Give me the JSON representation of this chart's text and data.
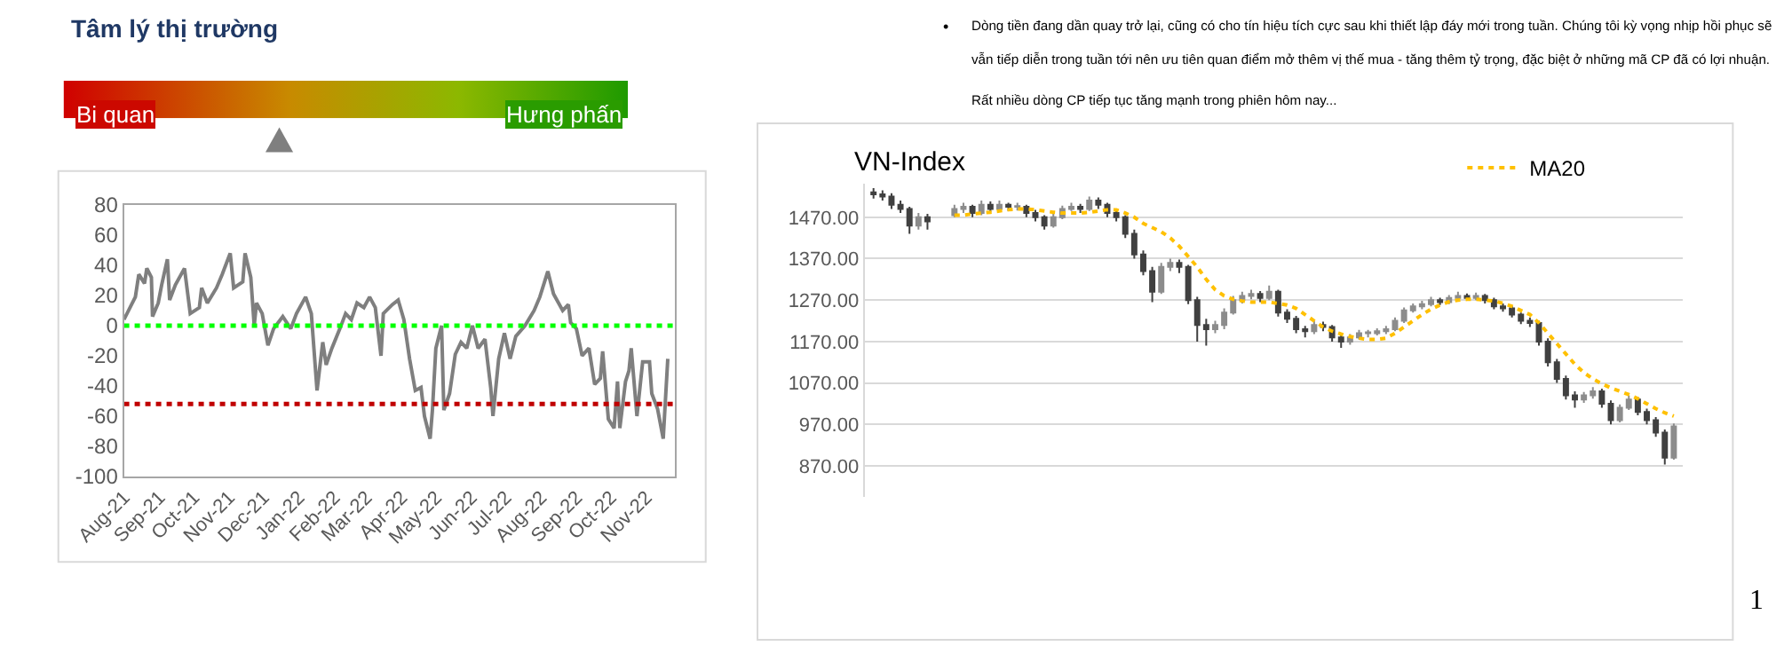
{
  "chart_data": [
    {
      "type": "line",
      "title": "Tâm lý thị trường",
      "annotations": [
        "Bi quan",
        "Hưng phấn"
      ],
      "color": "#7f7f7f",
      "marker": "none",
      "line_style": "solid",
      "grid": false,
      "x": [
        "2021-08-01",
        "2021-08-11",
        "2021-08-14",
        "2021-08-19",
        "2021-08-21",
        "2021-08-25",
        "2021-08-26",
        "2021-08-31",
        "2021-09-03",
        "2021-09-08",
        "2021-09-10",
        "2021-09-15",
        "2021-09-23",
        "2021-09-28",
        "2021-10-06",
        "2021-10-08",
        "2021-10-13",
        "2021-10-21",
        "2021-10-26",
        "2021-11-02",
        "2021-11-05",
        "2021-11-13",
        "2021-11-15",
        "2021-11-20",
        "2021-11-23",
        "2021-11-25",
        "2021-11-30",
        "2021-12-05",
        "2021-12-10",
        "2021-12-18",
        "2021-12-25",
        "2021-12-30",
        "2022-01-07",
        "2022-01-12",
        "2022-01-17",
        "2022-01-22",
        "2022-01-25",
        "2022-01-30",
        "2022-02-06",
        "2022-02-11",
        "2022-02-16",
        "2022-02-21",
        "2022-02-27",
        "2022-03-04",
        "2022-03-09",
        "2022-03-14",
        "2022-03-16",
        "2022-03-24",
        "2022-03-29",
        "2022-04-03",
        "2022-04-08",
        "2022-04-13",
        "2022-04-18",
        "2022-04-21",
        "2022-04-26",
        "2022-04-28",
        "2022-05-01",
        "2022-05-06",
        "2022-05-08",
        "2022-05-13",
        "2022-05-18",
        "2022-05-23",
        "2022-05-28",
        "2022-06-02",
        "2022-06-07",
        "2022-06-13",
        "2022-06-18",
        "2022-06-20",
        "2022-06-25",
        "2022-06-30",
        "2022-07-05",
        "2022-07-10",
        "2022-07-18",
        "2022-07-26",
        "2022-07-31",
        "2022-08-07",
        "2022-08-12",
        "2022-08-20",
        "2022-08-25",
        "2022-08-27",
        "2022-09-01",
        "2022-09-06",
        "2022-09-12",
        "2022-09-17",
        "2022-09-22",
        "2022-09-24",
        "2022-09-29",
        "2022-10-04",
        "2022-10-07",
        "2022-10-09",
        "2022-10-14",
        "2022-10-17",
        "2022-10-19",
        "2022-10-24",
        "2022-10-29",
        "2022-11-04",
        "2022-11-06",
        "2022-11-11",
        "2022-11-16",
        "2022-11-20"
      ],
      "values": [
        4,
        19,
        34,
        28,
        38,
        32,
        6,
        15,
        27,
        44,
        17,
        27,
        38,
        8,
        12,
        25,
        15,
        25,
        34,
        48,
        25,
        29,
        48,
        32,
        0,
        15,
        8,
        -13,
        -2,
        6,
        -2,
        8,
        19,
        8,
        -43,
        -11,
        -26,
        -15,
        -2,
        8,
        4,
        15,
        12,
        19,
        12,
        -20,
        8,
        14,
        17,
        4,
        -22,
        -43,
        -41,
        -60,
        -75,
        -56,
        -15,
        0,
        -56,
        -45,
        -19,
        -11,
        -15,
        0,
        -15,
        -9,
        -41,
        -60,
        -22,
        -5,
        -22,
        -7,
        0,
        10,
        19,
        36,
        21,
        10,
        14,
        2,
        -2,
        -20,
        -15,
        -39,
        -35,
        -17,
        -62,
        -68,
        -37,
        -68,
        -37,
        -30,
        -15,
        -60,
        -24,
        -24,
        -45,
        -55,
        -75,
        -22
      ],
      "xlim": [
        "2021-08-01",
        "2022-11-26"
      ],
      "xticks": [
        {
          "value": "2021-08-01",
          "label": "Aug-21"
        },
        {
          "value": "2021-09-01",
          "label": "Sep-21"
        },
        {
          "value": "2021-10-01",
          "label": "Oct-21"
        },
        {
          "value": "2021-11-01",
          "label": "Nov-21"
        },
        {
          "value": "2021-12-01",
          "label": "Dec-21"
        },
        {
          "value": "2022-01-01",
          "label": "Jan-22"
        },
        {
          "value": "2022-02-01",
          "label": "Feb-22"
        },
        {
          "value": "2022-03-01",
          "label": "Mar-22"
        },
        {
          "value": "2022-04-01",
          "label": "Apr-22"
        },
        {
          "value": "2022-05-01",
          "label": "May-22"
        },
        {
          "value": "2022-06-01",
          "label": "Jun-22"
        },
        {
          "value": "2022-07-01",
          "label": "Jul-22"
        },
        {
          "value": "2022-08-01",
          "label": "Aug-22"
        },
        {
          "value": "2022-09-01",
          "label": "Sep-22"
        },
        {
          "value": "2022-10-01",
          "label": "Oct-22"
        },
        {
          "value": "2022-11-01",
          "label": "Nov-22"
        }
      ],
      "ylim": [
        -100,
        80
      ],
      "yticks": [
        -100,
        -80,
        -60,
        -40,
        -20,
        0,
        20,
        40,
        60,
        80
      ],
      "ref_lines": [
        {
          "axis": "y",
          "value": 0,
          "color": "#00ff00",
          "line_style": "dotted"
        },
        {
          "axis": "y",
          "value": -52,
          "color": "#c00000",
          "line_style": "dotted"
        }
      ]
    },
    {
      "type": "candlestick",
      "title": "VN-Index",
      "grid": "y",
      "legend": "top right",
      "tick_labels": "y",
      "colors": [
        "#404040",
        "#404040",
        "#404040",
        "#404040",
        "#404040",
        "#8c8c8c",
        "#404040",
        null,
        null,
        "#8c8c8c",
        "#8c8c8c",
        "#404040",
        "#8c8c8c",
        "#404040",
        "#8c8c8c",
        "#404040",
        "#8c8c8c",
        "#404040",
        "#404040",
        "#404040",
        "#8c8c8c",
        "#8c8c8c",
        "#8c8c8c",
        "#404040",
        "#8c8c8c",
        "#404040",
        "#404040",
        "#404040",
        "#404040",
        "#404040",
        "#404040",
        "#404040",
        "#8c8c8c",
        "#8c8c8c",
        "#404040",
        "#404040",
        "#404040",
        "#404040",
        "#8c8c8c",
        "#8c8c8c",
        "#8c8c8c",
        "#8c8c8c",
        "#8c8c8c",
        "#404040",
        "#8c8c8c",
        "#404040",
        "#404040",
        "#404040",
        "#404040",
        "#8c8c8c",
        "#404040",
        "#404040",
        "#404040",
        "#8c8c8c",
        "#8c8c8c",
        "#8c8c8c",
        "#8c8c8c",
        "#8c8c8c",
        "#8c8c8c",
        "#8c8c8c",
        "#8c8c8c",
        "#8c8c8c",
        "#8c8c8c",
        "#404040",
        "#8c8c8c",
        "#8c8c8c",
        "#404040",
        "#8c8c8c",
        "#404040",
        "#404040",
        "#404040",
        "#404040",
        "#404040",
        "#404040",
        "#404040",
        "#404040",
        "#404040",
        "#404040",
        "#404040",
        "#8c8c8c",
        "#8c8c8c",
        "#404040",
        "#404040",
        "#8c8c8c",
        "#8c8c8c",
        "#404040",
        "#404040",
        "#404040",
        "#404040",
        "#8c8c8c"
      ],
      "categories": [
        null,
        null,
        null,
        null,
        null,
        null,
        null,
        null,
        null,
        null,
        null,
        null,
        null,
        null,
        null,
        null,
        null,
        null,
        null,
        null,
        null,
        null,
        null,
        null,
        null,
        null,
        null,
        null,
        null,
        null,
        null,
        null,
        null,
        null,
        null,
        null,
        null,
        null,
        null,
        null,
        null,
        null,
        null,
        null,
        null,
        null,
        null,
        null,
        null,
        null,
        null,
        null,
        null,
        null,
        null,
        null,
        null,
        null,
        null,
        null,
        null,
        null,
        null,
        null,
        null,
        null,
        null,
        null,
        null,
        null,
        null,
        null,
        null,
        null,
        null,
        null,
        null,
        null,
        null,
        null,
        null,
        null,
        null,
        null,
        null,
        null,
        null,
        null,
        null,
        null
      ],
      "ohlc": [
        [
          1530,
          1540,
          1515,
          1525
        ],
        [
          1525,
          1535,
          1510,
          1520
        ],
        [
          1520,
          1528,
          1490,
          1500
        ],
        [
          1500,
          1510,
          1480,
          1490
        ],
        [
          1490,
          1495,
          1430,
          1450
        ],
        [
          1450,
          1480,
          1440,
          1470
        ],
        [
          1470,
          1478,
          1440,
          1460
        ],
        null,
        null,
        [
          1475,
          1500,
          1470,
          1490
        ],
        [
          1490,
          1505,
          1480,
          1495
        ],
        [
          1495,
          1500,
          1470,
          1480
        ],
        [
          1480,
          1510,
          1475,
          1500
        ],
        [
          1500,
          1508,
          1482,
          1490
        ],
        [
          1490,
          1510,
          1485,
          1500
        ],
        [
          1500,
          1505,
          1485,
          1495
        ],
        [
          1495,
          1505,
          1486,
          1497
        ],
        [
          1495,
          1500,
          1470,
          1480
        ],
        [
          1480,
          1488,
          1460,
          1470
        ],
        [
          1470,
          1475,
          1440,
          1450
        ],
        [
          1450,
          1480,
          1445,
          1470
        ],
        [
          1470,
          1498,
          1465,
          1490
        ],
        [
          1490,
          1505,
          1485,
          1495
        ],
        [
          1495,
          1502,
          1480,
          1490
        ],
        [
          1490,
          1520,
          1485,
          1510
        ],
        [
          1510,
          1518,
          1490,
          1500
        ],
        [
          1500,
          1505,
          1470,
          1480
        ],
        [
          1480,
          1490,
          1460,
          1470
        ],
        [
          1470,
          1475,
          1420,
          1430
        ],
        [
          1430,
          1440,
          1370,
          1380
        ],
        [
          1380,
          1390,
          1330,
          1340
        ],
        [
          1340,
          1350,
          1265,
          1290
        ],
        [
          1290,
          1360,
          1285,
          1350
        ],
        [
          1350,
          1370,
          1340,
          1360
        ],
        [
          1360,
          1368,
          1335,
          1350
        ],
        [
          1350,
          1355,
          1260,
          1270
        ],
        [
          1270,
          1278,
          1170,
          1210
        ],
        [
          1210,
          1225,
          1160,
          1200
        ],
        [
          1200,
          1220,
          1190,
          1210
        ],
        [
          1210,
          1250,
          1200,
          1240
        ],
        [
          1240,
          1280,
          1235,
          1270
        ],
        [
          1270,
          1290,
          1262,
          1280
        ],
        [
          1280,
          1295,
          1272,
          1285
        ],
        [
          1285,
          1292,
          1265,
          1275
        ],
        [
          1275,
          1305,
          1270,
          1290
        ],
        [
          1290,
          1295,
          1230,
          1240
        ],
        [
          1240,
          1248,
          1215,
          1225
        ],
        [
          1225,
          1232,
          1190,
          1200
        ],
        [
          1200,
          1208,
          1180,
          1195
        ],
        [
          1195,
          1220,
          1188,
          1210
        ],
        [
          1210,
          1218,
          1195,
          1205
        ],
        [
          1205,
          1210,
          1170,
          1180
        ],
        [
          1180,
          1188,
          1155,
          1170
        ],
        [
          1170,
          1188,
          1162,
          1180
        ],
        [
          1180,
          1198,
          1175,
          1190
        ],
        [
          1190,
          1198,
          1180,
          1192
        ],
        [
          1190,
          1202,
          1185,
          1195
        ],
        [
          1195,
          1208,
          1188,
          1200
        ],
        [
          1200,
          1228,
          1195,
          1220
        ],
        [
          1220,
          1252,
          1215,
          1245
        ],
        [
          1245,
          1262,
          1240,
          1255
        ],
        [
          1255,
          1268,
          1248,
          1260
        ],
        [
          1260,
          1278,
          1255,
          1270
        ],
        [
          1270,
          1276,
          1258,
          1265
        ],
        [
          1265,
          1282,
          1260,
          1275
        ],
        [
          1275,
          1290,
          1270,
          1280
        ],
        [
          1280,
          1286,
          1268,
          1275
        ],
        [
          1275,
          1288,
          1270,
          1280
        ],
        [
          1280,
          1285,
          1262,
          1270
        ],
        [
          1270,
          1276,
          1248,
          1255
        ],
        [
          1255,
          1262,
          1242,
          1250
        ],
        [
          1250,
          1256,
          1228,
          1235
        ],
        [
          1235,
          1240,
          1212,
          1220
        ],
        [
          1220,
          1228,
          1205,
          1215
        ],
        [
          1215,
          1220,
          1160,
          1170
        ],
        [
          1170,
          1178,
          1110,
          1120
        ],
        [
          1120,
          1128,
          1070,
          1080
        ],
        [
          1080,
          1088,
          1030,
          1040
        ],
        [
          1040,
          1050,
          1010,
          1030
        ],
        [
          1030,
          1048,
          1022,
          1040
        ],
        [
          1040,
          1060,
          1032,
          1050
        ],
        [
          1050,
          1056,
          1010,
          1020
        ],
        [
          1020,
          1028,
          970,
          980
        ],
        [
          980,
          1018,
          975,
          1010
        ],
        [
          1010,
          1040,
          1005,
          1030
        ],
        [
          1030,
          1036,
          992,
          1000
        ],
        [
          1000,
          1008,
          970,
          980
        ],
        [
          980,
          988,
          940,
          950
        ],
        [
          950,
          958,
          873,
          890
        ],
        [
          890,
          972,
          885,
          965
        ]
      ],
      "series": [
        {
          "name": "MA20",
          "type": "line",
          "color": "#ffc000",
          "line_style": "dotted",
          "values": [
            null,
            null,
            null,
            null,
            null,
            null,
            null,
            null,
            null,
            1475,
            1475,
            1478,
            1480,
            1482,
            1485,
            1488,
            1490,
            1490,
            1488,
            1485,
            1482,
            1480,
            1480,
            1480,
            1482,
            1485,
            1488,
            1488,
            1480,
            1470,
            1455,
            1445,
            1435,
            1420,
            1400,
            1375,
            1350,
            1320,
            1295,
            1280,
            1272,
            1268,
            1265,
            1265,
            1265,
            1262,
            1258,
            1250,
            1235,
            1220,
            1205,
            1195,
            1188,
            1182,
            1178,
            1175,
            1175,
            1178,
            1190,
            1205,
            1220,
            1235,
            1248,
            1258,
            1266,
            1270,
            1272,
            1272,
            1270,
            1268,
            1262,
            1255,
            1245,
            1235,
            1215,
            1190,
            1165,
            1140,
            1115,
            1095,
            1080,
            1068,
            1058,
            1050,
            1042,
            1032,
            1020,
            1008,
            998,
            990
          ]
        }
      ],
      "ylim": [
        795,
        1552
      ],
      "yticks": [
        {
          "value": 870,
          "label": "870.00"
        },
        {
          "value": 970,
          "label": "970.00"
        },
        {
          "value": 1070,
          "label": "1070.00"
        },
        {
          "value": 1170,
          "label": "1170.00"
        },
        {
          "value": 1270,
          "label": "1270.00"
        },
        {
          "value": 1370,
          "label": "1370.00"
        },
        {
          "value": 1470,
          "label": "1470.00"
        }
      ]
    },
    {
      "type": "other",
      "annotations": [
        "•",
        "Dòng tiền đang dần quay trở lại, cũng có cho tín hiệu tích cực sau khi thiết lập đáy mới trong tuần. Chúng tôi kỳ vọng nhịp hồi phục sẽ vẫn tiếp diễn trong tuần tới nên ưu tiên quan điểm mở thêm vị thế mua - tăng thêm tỷ trọng, đặc biệt ở những mã CP đã có lợi nhuận.",
        "Rất nhiều dòng CP tiếp tục tăng mạnh trong phiên hôm nay...",
        "1"
      ]
    }
  ]
}
